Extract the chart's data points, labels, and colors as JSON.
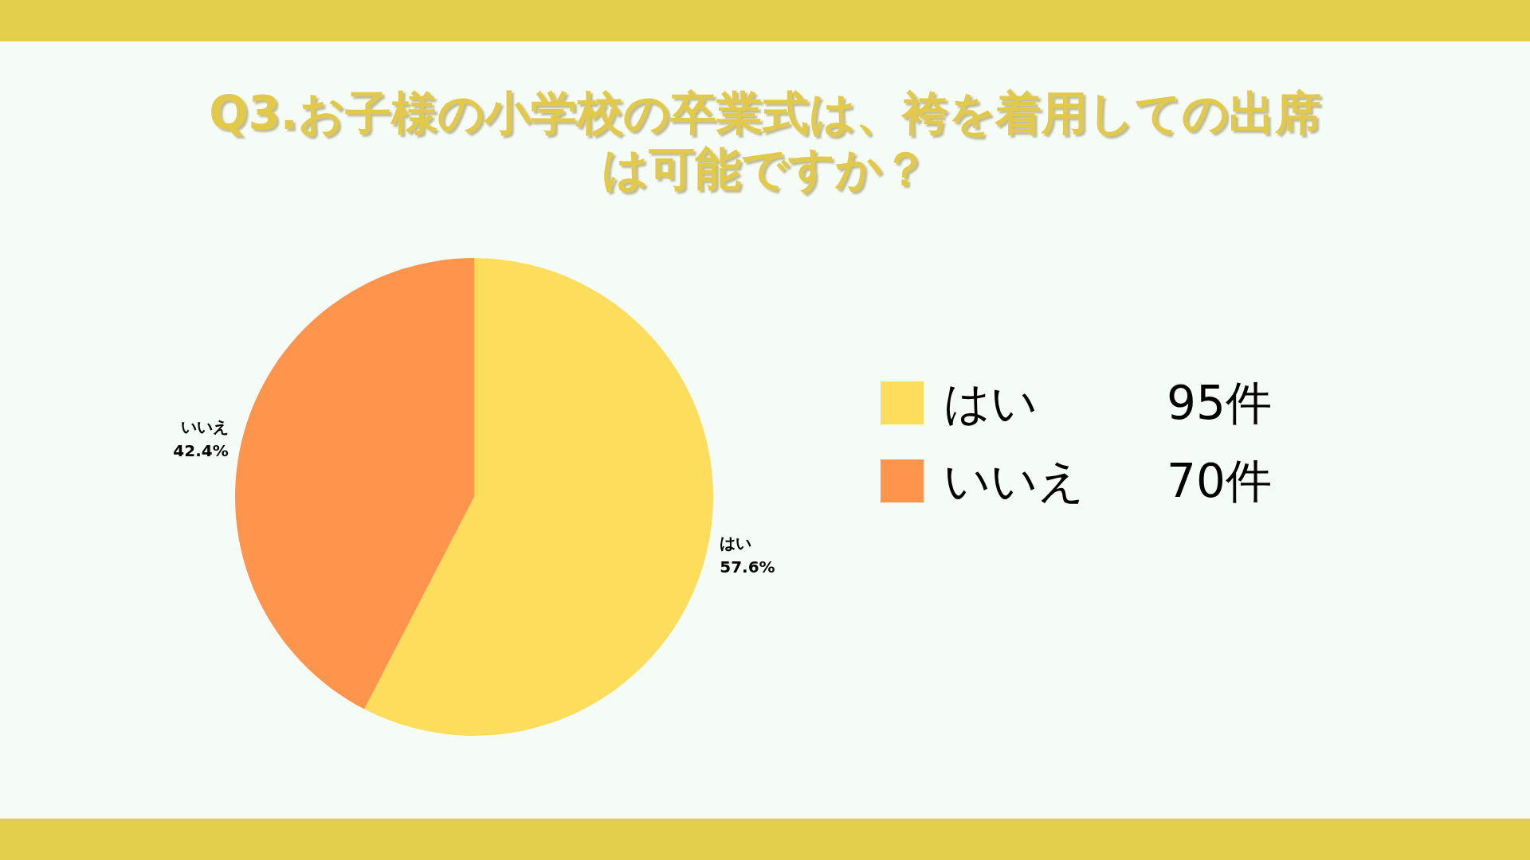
{
  "chart_data": {
    "type": "pie",
    "title": "Q3.お子様の小学校の卒業式は、袴を着用しての出席は可能ですか？",
    "categories": [
      "はい",
      "いいえ"
    ],
    "values": [
      57.6,
      42.4
    ],
    "colors": [
      "#ffdd5c",
      "#ff944d"
    ],
    "value_labels": [
      "57.6%",
      "42.4%"
    ],
    "annotations": [
      {
        "text": "95件",
        "x": "はい"
      },
      {
        "text": "70件",
        "x": "いいえ"
      }
    ],
    "legend": "right"
  }
}
